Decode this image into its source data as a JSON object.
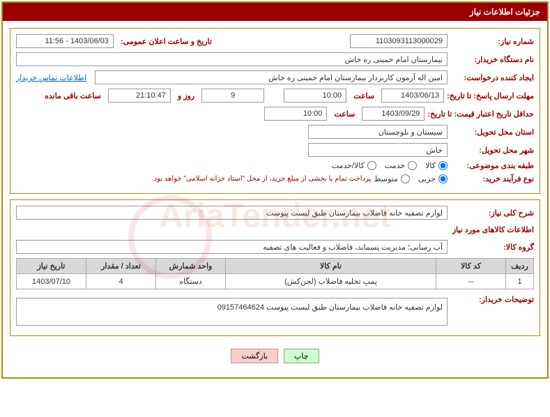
{
  "header": {
    "title": "جزئیات اطلاعات نیاز"
  },
  "form": {
    "need_no_label": "شماره نیاز:",
    "need_no": "1103093113000029",
    "announce_label": "تاریخ و ساعت اعلان عمومی:",
    "announce": "1403/06/03 - 11:56",
    "buyer_label": "نام دستگاه خریدار:",
    "buyer": "بیمارستان امام خمینی ره خاش",
    "requester_label": "ایجاد کننده درخواست:",
    "requester": "امین اله آزمون کاربردار بیمارستان امام خمینی ره خاش",
    "contact_link": "اطلاعات تماس خریدار",
    "deadline_label": "مهلت ارسال پاسخ: تا تاریخ:",
    "deadline_date": "1403/06/13",
    "time_label": "ساعت",
    "deadline_time": "10:00",
    "days": "9",
    "days_label": "روز و",
    "countdown": "21:10:47",
    "remain_label": "ساعت باقی مانده",
    "validity_label": "حداقل تاریخ اعتبار قیمت: تا تاریخ:",
    "validity_date": "1403/09/29",
    "validity_time": "10:00",
    "province_label": "استان محل تحویل:",
    "province": "سیستان و بلوچستان",
    "city_label": "شهر محل تحویل:",
    "city": "خاش",
    "category_label": "طبقه بندی موضوعی:",
    "cat_goods": "کالا",
    "cat_service": "خدمت",
    "cat_both": "کالا/خدمت",
    "process_label": "نوع فرآیند خرید:",
    "proc_partial": "جزیی",
    "proc_medium": "متوسط",
    "process_note": "پرداخت تمام یا بخشی از مبلغ خرید، از محل \"استاد خزانه اسلامی\" خواهد بود.",
    "overview_label": "شرح کلی نیاز:",
    "overview": "لوازم تصفیه خانه فاضلاب بیمارستان طبق لیست پیوست",
    "goods_info_title": "اطلاعات کالاهای مورد نیاز",
    "group_label": "گروه کالا:",
    "group": "آب رسانی؛ مدیریت پسماند، فاضلاب و فعالیت های تصفیه",
    "buyer_notes_label": "توضیحات خریدار:",
    "buyer_notes": "لوازم تصفیه خانه فاضلاب بیمارستان طبق لیست پیوست 09157464624"
  },
  "table": {
    "headers": {
      "row": "ردیف",
      "code": "کد کالا",
      "name": "نام کالا",
      "unit": "واحد شمارش",
      "qty": "تعداد / مقدار",
      "date": "تاریخ نیاز"
    },
    "rows": [
      {
        "row": "1",
        "code": "--",
        "name": "پمپ تخلیه فاضلاب (لجن‌کش)",
        "unit": "دستگاه",
        "qty": "4",
        "date": "1403/07/10"
      }
    ]
  },
  "buttons": {
    "print": "چاپ",
    "back": "بازگشت"
  },
  "watermark": "AriaTender.net"
}
